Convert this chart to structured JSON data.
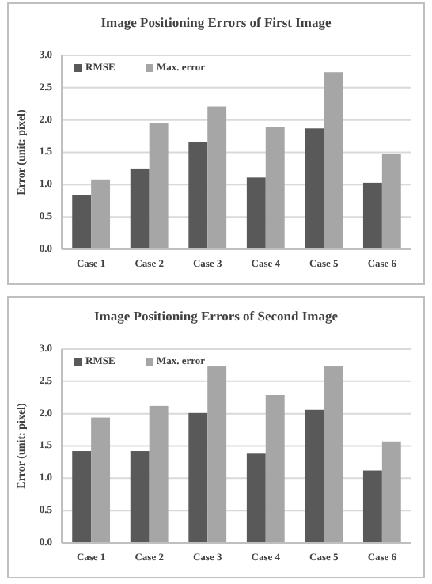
{
  "chart_data": [
    {
      "type": "bar",
      "title": "Image Positioning Errors of First Image",
      "ylabel": "Error (unit: pixel)",
      "categories": [
        "Case 1",
        "Case 2",
        "Case 3",
        "Case 4",
        "Case 5",
        "Case 6"
      ],
      "series": [
        {
          "name": "RMSE",
          "color": "#595959",
          "values": [
            0.84,
            1.25,
            1.66,
            1.11,
            1.87,
            1.03
          ]
        },
        {
          "name": "Max. error",
          "color": "#a6a6a6",
          "values": [
            1.08,
            1.95,
            2.21,
            1.89,
            2.74,
            1.47
          ]
        }
      ],
      "ylim": [
        0,
        3
      ],
      "yticks": [
        {
          "value": 0,
          "label": "0.0"
        },
        {
          "value": 0.5,
          "label": "0.5"
        },
        {
          "value": 1,
          "label": "1.0"
        },
        {
          "value": 1.5,
          "label": "1.5"
        },
        {
          "value": 2,
          "label": "2.0"
        },
        {
          "value": 2.5,
          "label": "2.5"
        },
        {
          "value": 3,
          "label": "3.0"
        }
      ],
      "grid": "y",
      "legend": "top left"
    },
    {
      "type": "bar",
      "title": "Image Positioning Errors of Second Image",
      "ylabel": "Error (unit: pixel)",
      "categories": [
        "Case 1",
        "Case 2",
        "Case 3",
        "Case 4",
        "Case 5",
        "Case 6"
      ],
      "series": [
        {
          "name": "RMSE",
          "color": "#595959",
          "values": [
            1.42,
            1.42,
            2.01,
            1.38,
            2.06,
            1.12
          ]
        },
        {
          "name": "Max. error",
          "color": "#a6a6a6",
          "values": [
            1.94,
            2.12,
            2.73,
            2.29,
            2.73,
            1.57
          ]
        }
      ],
      "ylim": [
        0,
        3
      ],
      "yticks": [
        {
          "value": 0,
          "label": "0.0"
        },
        {
          "value": 0.5,
          "label": "0.5"
        },
        {
          "value": 1,
          "label": "1.0"
        },
        {
          "value": 1.5,
          "label": "1.5"
        },
        {
          "value": 2,
          "label": "2.0"
        },
        {
          "value": 2.5,
          "label": "2.5"
        },
        {
          "value": 3,
          "label": "3.0"
        }
      ],
      "grid": "y",
      "legend": "top left"
    }
  ]
}
